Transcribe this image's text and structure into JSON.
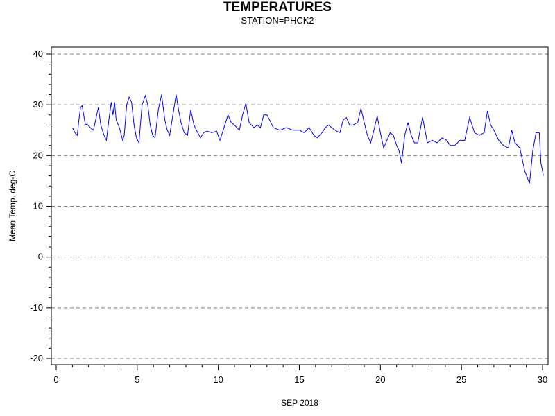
{
  "chart_data": {
    "type": "line",
    "title": "TEMPERATURES",
    "subtitle": "STATION=PHCK2",
    "xlabel": "SEP 2018",
    "ylabel": "Mean Temp. deg-C",
    "xlim": [
      0,
      30
    ],
    "ylim": [
      -20,
      40
    ],
    "xticks": [
      0,
      5,
      10,
      15,
      20,
      25,
      30
    ],
    "yticks": [
      -20,
      -10,
      0,
      10,
      20,
      30,
      40
    ],
    "grid": "horizontal-dashed",
    "series": [
      {
        "color": "#0000ff",
        "x": [
          1.0,
          1.15,
          1.3,
          1.4,
          1.5,
          1.6,
          1.8,
          1.9,
          2.1,
          2.3,
          2.5,
          2.6,
          2.75,
          2.95,
          3.1,
          3.25,
          3.4,
          3.5,
          3.6,
          3.7,
          3.9,
          4.1,
          4.2,
          4.35,
          4.5,
          4.65,
          4.8,
          4.95,
          5.1,
          5.3,
          5.5,
          5.65,
          5.8,
          5.95,
          6.1,
          6.3,
          6.5,
          6.7,
          6.85,
          7.0,
          7.2,
          7.4,
          7.55,
          7.7,
          7.9,
          8.1,
          8.3,
          8.5,
          8.65,
          8.9,
          9.1,
          9.3,
          9.6,
          9.9,
          10.1,
          10.3,
          10.6,
          10.8,
          11.0,
          11.3,
          11.5,
          11.7,
          11.9,
          12.2,
          12.4,
          12.6,
          12.8,
          13.0,
          13.4,
          13.8,
          14.2,
          14.6,
          15.0,
          15.3,
          15.6,
          15.9,
          16.1,
          16.4,
          16.6,
          16.8,
          17.2,
          17.5,
          17.7,
          17.9,
          18.1,
          18.3,
          18.6,
          18.8,
          19.0,
          19.2,
          19.4,
          19.6,
          19.8,
          20.0,
          20.2,
          20.4,
          20.6,
          20.8,
          21.0,
          21.15,
          21.3,
          21.5,
          21.7,
          21.9,
          22.1,
          22.3,
          22.6,
          22.9,
          23.2,
          23.5,
          23.8,
          24.1,
          24.3,
          24.6,
          24.9,
          25.2,
          25.5,
          25.8,
          26.1,
          26.4,
          26.6,
          26.8,
          27.0,
          27.3,
          27.6,
          27.9,
          28.1,
          28.3,
          28.6,
          28.9,
          29.2,
          29.4,
          29.6,
          29.8,
          29.9,
          30.0,
          30.05
        ],
        "y": [
          25.5,
          24.5,
          24.0,
          27.0,
          29.5,
          29.8,
          26.0,
          26.2,
          25.5,
          25.0,
          28.0,
          29.5,
          26.0,
          24.0,
          23.0,
          27.0,
          30.5,
          28.0,
          30.5,
          27.0,
          25.5,
          23.0,
          24.0,
          30.0,
          31.5,
          30.5,
          26.0,
          23.5,
          22.5,
          30.0,
          31.8,
          30.0,
          26.0,
          24.0,
          23.5,
          29.0,
          32.0,
          27.0,
          25.0,
          24.0,
          28.0,
          32.0,
          29.0,
          26.5,
          24.5,
          24.0,
          29.0,
          26.0,
          25.0,
          23.5,
          24.5,
          24.8,
          24.5,
          24.8,
          23.0,
          25.0,
          28.0,
          26.5,
          26.0,
          25.0,
          28.0,
          30.3,
          26.5,
          25.5,
          26.0,
          25.5,
          28.0,
          28.0,
          25.5,
          25.0,
          25.5,
          25.0,
          25.0,
          24.5,
          25.5,
          24.0,
          23.5,
          24.5,
          25.5,
          26.0,
          25.0,
          24.5,
          27.0,
          27.5,
          26.0,
          26.0,
          26.5,
          29.3,
          26.5,
          24.0,
          22.5,
          25.0,
          27.8,
          24.5,
          21.5,
          23.0,
          24.5,
          24.0,
          22.0,
          21.0,
          18.5,
          24.0,
          26.5,
          24.0,
          22.5,
          22.5,
          27.5,
          22.5,
          23.0,
          22.5,
          23.5,
          23.0,
          22.0,
          22.0,
          23.0,
          23.0,
          27.5,
          24.5,
          24.0,
          24.5,
          28.8,
          26.0,
          25.0,
          23.0,
          22.0,
          21.5,
          25.0,
          22.5,
          21.5,
          17.0,
          14.5,
          21.0,
          24.5,
          24.5,
          18.5,
          17.0,
          16.0
        ]
      }
    ]
  }
}
